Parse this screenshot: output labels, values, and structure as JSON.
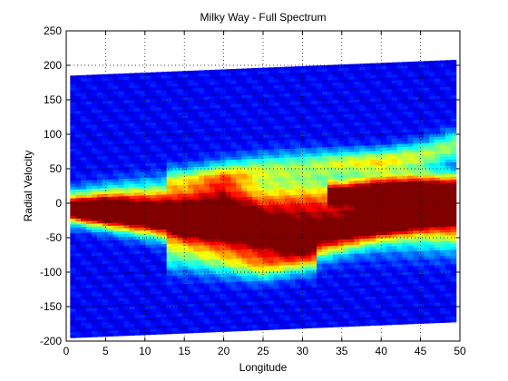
{
  "chart_data": {
    "type": "heatmap",
    "title": "Milky Way - Full Spectrum",
    "xlabel": "Longitude",
    "ylabel": "Radial Velocity",
    "xlim": [
      0,
      50
    ],
    "ylim": [
      -200,
      250
    ],
    "xticks": [
      "0",
      "5",
      "10",
      "15",
      "20",
      "25",
      "30",
      "35",
      "40",
      "45",
      "50"
    ],
    "yticks": [
      "250",
      "200",
      "150",
      "100",
      "50",
      "0",
      "-50",
      "-100",
      "-150",
      "-200"
    ],
    "x_tick_values": [
      0,
      5,
      10,
      15,
      20,
      25,
      30,
      35,
      40,
      45,
      50
    ],
    "y_tick_values": [
      250,
      200,
      150,
      100,
      50,
      0,
      -50,
      -100,
      -150,
      -200
    ],
    "grid": true,
    "colormap": "jet",
    "data_extent": {
      "x": [
        0.5,
        49.5
      ],
      "top_velocity": [
        185,
        208
      ],
      "bottom_velocity": [
        -195,
        -172
      ]
    },
    "intensity_ridges": [
      {
        "x": [
          0.5,
          5,
          10,
          15,
          20,
          25,
          30,
          35,
          40,
          45,
          49.5
        ],
        "center": [
          -5,
          -5,
          -5,
          -8,
          -5,
          -10,
          -10,
          -8,
          -8,
          -10,
          -15
        ],
        "width": [
          15,
          18,
          22,
          25,
          28,
          30,
          32,
          32,
          32,
          32,
          30
        ],
        "peak": [
          0.75,
          0.95,
          0.8,
          0.85,
          0.95,
          0.7,
          0.75,
          0.7,
          0.85,
          0.9,
          0.95
        ]
      },
      {
        "x": [
          0.5,
          10,
          20,
          25,
          30,
          35,
          40,
          45,
          49.5
        ],
        "center": [
          -10,
          -25,
          -40,
          -50,
          -55,
          -45,
          -30,
          -20,
          -10
        ],
        "width": [
          10,
          15,
          20,
          22,
          20,
          18,
          15,
          12,
          10
        ],
        "peak": [
          0.5,
          0.55,
          0.65,
          0.75,
          0.7,
          0.6,
          0.55,
          0.5,
          0.45
        ]
      },
      {
        "x": [
          15,
          20,
          25,
          30,
          35,
          40,
          45,
          49.5
        ],
        "center": [
          35,
          40,
          50,
          55,
          60,
          62,
          70,
          85
        ],
        "width": [
          12,
          14,
          15,
          15,
          12,
          12,
          14,
          15
        ],
        "peak": [
          0.3,
          0.4,
          0.35,
          0.3,
          0.4,
          0.45,
          0.4,
          0.4
        ]
      },
      {
        "x": [
          15,
          20,
          25,
          30
        ],
        "center": [
          -70,
          -80,
          -90,
          -80
        ],
        "width": [
          20,
          18,
          15,
          15
        ],
        "peak": [
          0.35,
          0.4,
          0.45,
          0.35
        ]
      },
      {
        "x": [
          35,
          40,
          45,
          49.5
        ],
        "center": [
          15,
          20,
          20,
          20
        ],
        "width": [
          10,
          12,
          14,
          14
        ],
        "peak": [
          0.55,
          0.6,
          0.65,
          0.7
        ]
      }
    ]
  }
}
